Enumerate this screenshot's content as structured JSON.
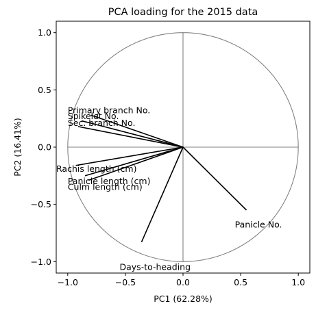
{
  "chart_data": {
    "type": "scatter",
    "title": "PCA loading for the 2015 data",
    "xlabel": "PC1 (62.28%)",
    "ylabel": "PC2 (16.41%)",
    "xlim": [
      -1.1,
      1.1
    ],
    "ylim": [
      -1.1,
      1.1
    ],
    "x_ticks": [
      -1.0,
      -0.5,
      0.0,
      0.5,
      1.0
    ],
    "x_tick_labels": [
      "−1.0",
      "−0.5",
      "0.0",
      "0.5",
      "1.0"
    ],
    "y_ticks": [
      -1.0,
      -0.5,
      0.0,
      0.5,
      1.0
    ],
    "y_tick_labels": [
      "−1.0",
      "−0.5",
      "0.0",
      "0.5",
      "1.0"
    ],
    "unit_circle": true,
    "grid": false,
    "loadings": [
      {
        "name": "Primary branch No.",
        "x": -0.8,
        "y": 0.28,
        "label_x": -1.0,
        "label_y": 0.32
      },
      {
        "name": "Spikelet No.",
        "x": -0.88,
        "y": 0.23,
        "label_x": -1.0,
        "label_y": 0.27
      },
      {
        "name": "Sec. branch No.",
        "x": -0.91,
        "y": 0.18,
        "label_x": -1.0,
        "label_y": 0.21
      },
      {
        "name": "Rachis length (cm)",
        "x": -0.93,
        "y": -0.16,
        "label_x": -1.1,
        "label_y": -0.19
      },
      {
        "name": "Panicle length (cm)",
        "x": -0.85,
        "y": -0.25,
        "label_x": -1.0,
        "label_y": -0.3
      },
      {
        "name": "Culm length (cm)",
        "x": -0.82,
        "y": -0.29,
        "label_x": -1.0,
        "label_y": -0.35
      },
      {
        "name": "Days-to-heading",
        "x": -0.36,
        "y": -0.83,
        "label_x": -0.55,
        "label_y": -1.05
      },
      {
        "name": "Panicle No.",
        "x": 0.55,
        "y": -0.55,
        "label_x": 0.45,
        "label_y": -0.68
      }
    ]
  }
}
